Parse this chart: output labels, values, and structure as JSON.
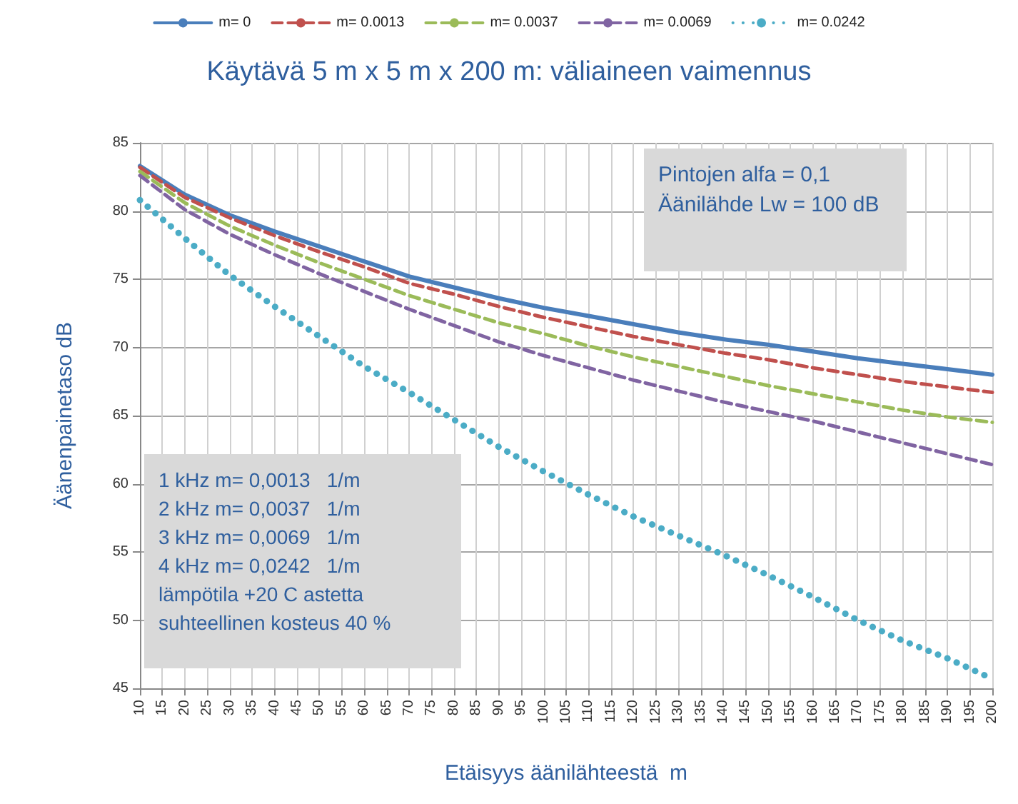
{
  "chart_data": {
    "type": "line",
    "title": "Käytävä 5 m x 5 m x 200 m: väliaineen vaimennus",
    "xlabel": "Etäisyys äänilähteestä  m",
    "ylabel": "Äänenpainetaso dB",
    "x": [
      10,
      20,
      30,
      40,
      50,
      60,
      70,
      80,
      90,
      100,
      110,
      120,
      130,
      140,
      150,
      160,
      170,
      180,
      190,
      200
    ],
    "series": [
      {
        "name": "m= 0",
        "color": "#4a7ebb",
        "line_style": "solid",
        "values": [
          83.3,
          81.2,
          79.7,
          78.5,
          77.4,
          76.3,
          75.2,
          74.4,
          73.6,
          72.9,
          72.3,
          71.7,
          71.1,
          70.6,
          70.2,
          69.7,
          69.2,
          68.8,
          68.4,
          68.0
        ]
      },
      {
        "name": "m= 0.0013",
        "color": "#c0504d",
        "line_style": "dashed",
        "values": [
          83.2,
          81.0,
          79.5,
          78.2,
          77.0,
          75.9,
          74.7,
          73.9,
          73.0,
          72.2,
          71.5,
          70.8,
          70.2,
          69.6,
          69.1,
          68.5,
          68.0,
          67.5,
          67.1,
          66.7
        ]
      },
      {
        "name": "m= 0.0037",
        "color": "#9bbb59",
        "line_style": "dashed",
        "values": [
          82.9,
          80.6,
          78.9,
          77.5,
          76.2,
          75.0,
          73.8,
          72.8,
          71.8,
          71.0,
          70.1,
          69.3,
          68.6,
          67.9,
          67.2,
          66.6,
          66.0,
          65.4,
          64.9,
          64.5
        ]
      },
      {
        "name": "m= 0.0069",
        "color": "#8064a2",
        "line_style": "dashed",
        "values": [
          82.6,
          80.1,
          78.3,
          76.8,
          75.4,
          74.1,
          72.8,
          71.6,
          70.4,
          69.4,
          68.5,
          67.6,
          66.8,
          66.0,
          65.3,
          64.6,
          63.8,
          63.0,
          62.2,
          61.4
        ]
      },
      {
        "name": "m= 0.0242",
        "color": "#4bacc6",
        "line_style": "dotted",
        "values": [
          80.8,
          78.0,
          75.3,
          73.0,
          70.8,
          68.6,
          66.7,
          64.7,
          62.7,
          60.9,
          59.2,
          57.6,
          56.2,
          54.8,
          53.3,
          51.7,
          50.0,
          48.5,
          47.2,
          45.7
        ]
      }
    ],
    "xlim": [
      10,
      200
    ],
    "xticks": [
      10,
      15,
      20,
      25,
      30,
      35,
      40,
      45,
      50,
      55,
      60,
      65,
      70,
      75,
      80,
      85,
      90,
      95,
      100,
      105,
      110,
      115,
      120,
      125,
      130,
      135,
      140,
      145,
      150,
      155,
      160,
      165,
      170,
      175,
      180,
      185,
      190,
      195,
      200
    ],
    "ylim": [
      45,
      85
    ],
    "yticks": [
      45,
      50,
      55,
      60,
      65,
      70,
      75,
      80,
      85
    ],
    "grid": true,
    "legend": "top",
    "marker": "none",
    "annotations": [
      "Pintojen alfa = 0,1\nÄänilähde Lw = 100 dB",
      "1 kHz m= 0,0013   1/m\n2 kHz m= 0,0037   1/m\n3 kHz m= 0,0069   1/m\n4 kHz m= 0,0242   1/m\nlämpötila +20 C astetta\nsuhteellinen kosteus 40 %"
    ]
  }
}
